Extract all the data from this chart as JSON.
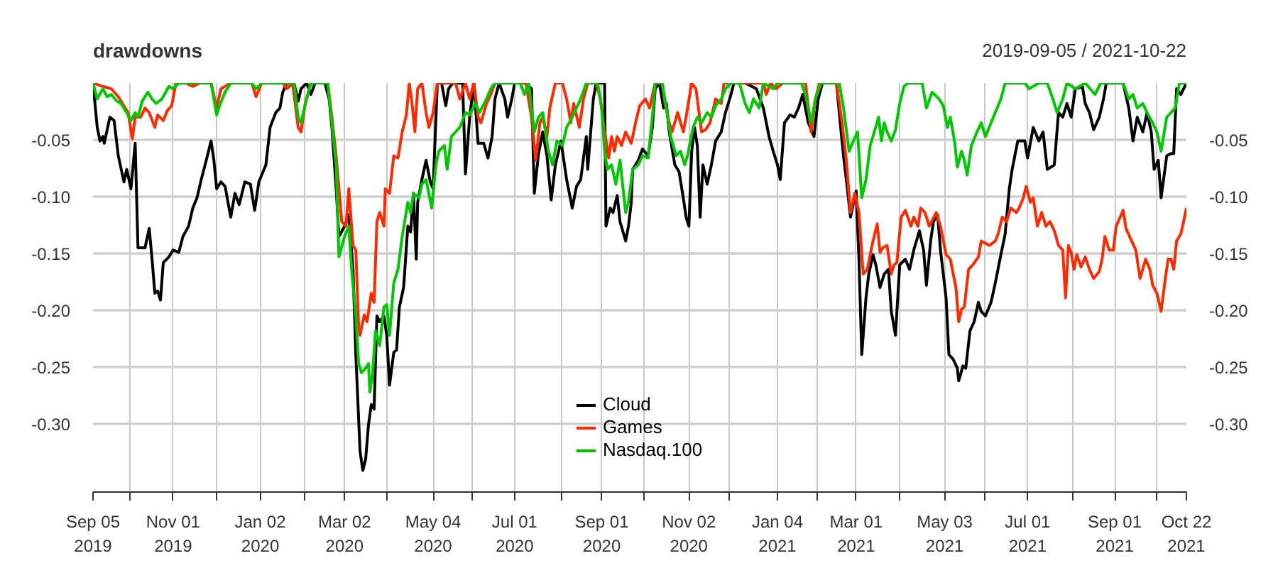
{
  "chart_data": {
    "type": "line",
    "title": "drawdowns",
    "subtitle": "2019-09-05 / 2021-10-22",
    "xlim": [
      "2019-09-05",
      "2021-10-22"
    ],
    "xticks": [
      {
        "value": "2019-09-05",
        "label": "Sep 05\n2019"
      },
      {
        "value": "2019-10-01",
        "label": null
      },
      {
        "value": "2019-11-01",
        "label": "Nov 01\n2019"
      },
      {
        "value": "2019-12-02",
        "label": null
      },
      {
        "value": "2020-01-02",
        "label": "Jan 02\n2020"
      },
      {
        "value": "2020-02-03",
        "label": null
      },
      {
        "value": "2020-03-02",
        "label": "Mar 02\n2020"
      },
      {
        "value": "2020-04-01",
        "label": null
      },
      {
        "value": "2020-05-04",
        "label": "May 04\n2020"
      },
      {
        "value": "2020-06-01",
        "label": null
      },
      {
        "value": "2020-07-01",
        "label": "Jul 01\n2020"
      },
      {
        "value": "2020-08-03",
        "label": null
      },
      {
        "value": "2020-09-01",
        "label": "Sep 01\n2020"
      },
      {
        "value": "2020-10-01",
        "label": null
      },
      {
        "value": "2020-11-02",
        "label": "Nov 02\n2020"
      },
      {
        "value": "2020-12-01",
        "label": null
      },
      {
        "value": "2021-01-04",
        "label": "Jan 04\n2021"
      },
      {
        "value": "2021-02-01",
        "label": null
      },
      {
        "value": "2021-03-01",
        "label": "Mar 01\n2021"
      },
      {
        "value": "2021-04-01",
        "label": null
      },
      {
        "value": "2021-05-03",
        "label": "May 03\n2021"
      },
      {
        "value": "2021-06-01",
        "label": null
      },
      {
        "value": "2021-07-01",
        "label": "Jul 01\n2021"
      },
      {
        "value": "2021-08-02",
        "label": null
      },
      {
        "value": "2021-09-01",
        "label": "Sep 01\n2021"
      },
      {
        "value": "2021-10-01",
        "label": null
      },
      {
        "value": "2021-10-22",
        "label": "Oct 22\n2021"
      }
    ],
    "ylim": [
      -0.36,
      0
    ],
    "yticks": [
      {
        "value": -0.3,
        "label": "-0.30"
      },
      -0.25,
      {
        "value": -0.2,
        "label": "-0.20"
      },
      -0.15,
      {
        "value": -0.1,
        "label": "-0.10"
      },
      -0.05
    ],
    "y2lim": [
      -0.36,
      0
    ],
    "y2ticks": [
      {
        "value": -0.3,
        "label": "-0.30"
      },
      -0.25,
      {
        "value": -0.2,
        "label": "-0.20"
      },
      -0.15,
      {
        "value": -0.1,
        "label": "-0.10"
      },
      -0.05
    ],
    "grid": true,
    "legend": "bottom",
    "series": [
      {
        "name": "Cloud",
        "color": "#000000",
        "x": [
          "2019-09-05",
          "2019-09-08",
          "2019-09-10",
          "2019-09-12",
          "2019-09-13",
          "2019-09-17",
          "2019-09-20",
          "2019-09-23",
          "2019-09-27",
          "2019-09-29",
          "2019-10-02",
          "2019-10-05",
          "2019-10-07",
          "2019-10-12",
          "2019-10-15",
          "2019-10-17",
          "2019-10-19",
          "2019-10-21",
          "2019-10-23",
          "2019-10-25",
          "2019-10-29",
          "2019-11-01",
          "2019-11-05",
          "2019-11-08",
          "2019-11-12",
          "2019-11-15",
          "2019-11-18",
          "2019-11-21",
          "2019-11-25",
          "2019-11-28",
          "2019-11-30",
          "2019-12-02",
          "2019-12-05",
          "2019-12-08",
          "2019-12-12",
          "2019-12-15",
          "2019-12-18",
          "2019-12-22",
          "2019-12-26",
          "2019-12-29",
          "2020-01-01",
          "2020-01-06",
          "2020-01-09",
          "2020-01-13",
          "2020-01-16",
          "2020-01-18",
          "2020-01-21",
          "2020-01-26",
          "2020-01-29",
          "2020-01-31",
          "2020-02-04",
          "2020-02-07",
          "2020-02-10",
          "2020-02-17",
          "2020-02-20",
          "2020-02-22",
          "2020-02-25",
          "2020-02-27",
          "2020-03-02",
          "2020-03-05",
          "2020-03-08",
          "2020-03-10",
          "2020-03-13",
          "2020-03-15",
          "2020-03-17",
          "2020-03-19",
          "2020-03-21",
          "2020-03-23",
          "2020-03-25",
          "2020-03-27",
          "2020-03-30",
          "2020-04-01",
          "2020-04-03",
          "2020-04-06",
          "2020-04-08",
          "2020-04-10",
          "2020-04-13",
          "2020-04-16",
          "2020-04-18",
          "2020-04-20",
          "2020-04-22",
          "2020-04-23",
          "2020-04-26",
          "2020-04-29",
          "2020-05-02",
          "2020-05-04",
          "2020-05-07",
          "2020-05-10",
          "2020-05-13",
          "2020-05-15",
          "2020-05-18",
          "2020-05-25",
          "2020-05-27",
          "2020-05-30",
          "2020-06-02",
          "2020-06-05",
          "2020-06-09",
          "2020-06-12",
          "2020-06-15",
          "2020-06-17",
          "2020-06-20",
          "2020-06-24",
          "2020-06-26",
          "2020-06-29",
          "2020-07-01",
          "2020-07-09",
          "2020-07-13",
          "2020-07-15",
          "2020-07-18",
          "2020-07-21",
          "2020-07-24",
          "2020-07-27",
          "2020-07-30",
          "2020-08-03",
          "2020-08-07",
          "2020-08-11",
          "2020-08-14",
          "2020-08-17",
          "2020-08-21",
          "2020-08-22",
          "2020-08-26",
          "2020-08-28",
          "2020-09-03",
          "2020-09-04",
          "2020-09-07",
          "2020-09-09",
          "2020-09-12",
          "2020-09-14",
          "2020-09-18",
          "2020-09-20",
          "2020-09-22",
          "2020-09-23",
          "2020-09-27",
          "2020-09-30",
          "2020-10-04",
          "2020-10-07",
          "2020-10-09",
          "2020-10-12",
          "2020-10-15",
          "2020-10-17",
          "2020-10-19",
          "2020-10-23",
          "2020-10-26",
          "2020-10-29",
          "2020-10-31",
          "2020-11-02",
          "2020-11-04",
          "2020-11-06",
          "2020-11-08",
          "2020-11-10",
          "2020-11-12",
          "2020-11-15",
          "2020-11-18",
          "2020-11-21",
          "2020-11-25",
          "2020-11-28",
          "2020-12-02",
          "2020-12-04",
          "2020-12-12",
          "2020-12-20",
          "2020-12-25",
          "2020-12-29",
          "2021-01-01",
          "2021-01-04",
          "2021-01-06",
          "2021-01-09",
          "2021-01-13",
          "2021-01-16",
          "2021-01-19",
          "2021-01-22",
          "2021-01-26",
          "2021-01-30",
          "2021-02-02",
          "2021-02-05",
          "2021-02-15",
          "2021-02-18",
          "2021-02-20",
          "2021-02-22",
          "2021-02-25",
          "2021-03-01",
          "2021-03-03",
          "2021-03-05",
          "2021-03-08",
          "2021-03-10",
          "2021-03-13",
          "2021-03-15",
          "2021-03-18",
          "2021-03-21",
          "2021-03-24",
          "2021-03-26",
          "2021-03-29",
          "2021-04-01",
          "2021-04-05",
          "2021-04-08",
          "2021-04-11",
          "2021-04-15",
          "2021-04-18",
          "2021-04-20",
          "2021-04-23",
          "2021-04-25",
          "2021-04-28",
          "2021-04-30",
          "2021-05-04",
          "2021-05-06",
          "2021-05-09",
          "2021-05-12",
          "2021-05-13",
          "2021-05-16",
          "2021-05-18",
          "2021-05-21",
          "2021-05-24",
          "2021-05-27",
          "2021-05-29",
          "2021-06-01",
          "2021-06-05",
          "2021-06-08",
          "2021-06-12",
          "2021-06-15",
          "2021-06-18",
          "2021-06-20",
          "2021-06-24",
          "2021-06-29",
          "2021-07-01",
          "2021-07-05",
          "2021-07-09",
          "2021-07-12",
          "2021-07-15",
          "2021-07-20",
          "2021-07-23",
          "2021-07-26",
          "2021-07-29",
          "2021-08-01",
          "2021-08-04",
          "2021-08-09",
          "2021-08-11",
          "2021-08-14",
          "2021-08-17",
          "2021-08-21",
          "2021-08-24",
          "2021-08-26",
          "2021-09-07",
          "2021-09-11",
          "2021-09-14",
          "2021-09-17",
          "2021-09-21",
          "2021-09-24",
          "2021-09-27",
          "2021-09-29",
          "2021-10-02",
          "2021-10-04",
          "2021-10-08",
          "2021-10-11",
          "2021-10-13",
          "2021-10-15",
          "2021-10-18",
          "2021-10-20",
          "2021-10-22"
        ],
        "values": [
          0,
          -0.039,
          -0.051,
          -0.047,
          -0.053,
          -0.03,
          -0.033,
          -0.064,
          -0.087,
          -0.076,
          -0.093,
          -0.053,
          -0.145,
          -0.145,
          -0.128,
          -0.155,
          -0.185,
          -0.183,
          -0.191,
          -0.158,
          -0.153,
          -0.147,
          -0.149,
          -0.135,
          -0.126,
          -0.11,
          -0.101,
          -0.085,
          -0.066,
          -0.051,
          -0.068,
          -0.093,
          -0.087,
          -0.091,
          -0.118,
          -0.097,
          -0.107,
          -0.087,
          -0.089,
          -0.112,
          -0.087,
          -0.072,
          -0.039,
          -0.026,
          -0.022,
          -0.008,
          0,
          0,
          -0.016,
          -0.005,
          0,
          -0.01,
          0,
          0,
          -0.014,
          -0.039,
          -0.093,
          -0.135,
          -0.126,
          -0.116,
          -0.164,
          -0.239,
          -0.324,
          -0.341,
          -0.331,
          -0.301,
          -0.283,
          -0.287,
          -0.205,
          -0.21,
          -0.205,
          -0.222,
          -0.266,
          -0.237,
          -0.235,
          -0.197,
          -0.18,
          -0.126,
          -0.131,
          -0.097,
          -0.155,
          -0.105,
          -0.085,
          -0.068,
          -0.087,
          -0.093,
          0,
          0,
          -0.02,
          -0.005,
          0,
          0,
          -0.08,
          -0.03,
          0,
          -0.053,
          -0.053,
          -0.066,
          -0.047,
          -0.014,
          0,
          -0.014,
          -0.03,
          -0.014,
          0,
          0,
          -0.005,
          -0.097,
          -0.062,
          -0.043,
          -0.064,
          -0.103,
          -0.072,
          -0.051,
          -0.085,
          -0.11,
          -0.091,
          -0.085,
          -0.047,
          -0.076,
          -0.014,
          0,
          0,
          -0.126,
          -0.11,
          -0.114,
          -0.099,
          -0.122,
          -0.139,
          -0.126,
          -0.105,
          -0.076,
          -0.068,
          -0.058,
          -0.064,
          -0.039,
          -0.005,
          0,
          -0.022,
          -0.018,
          -0.043,
          -0.072,
          -0.078,
          -0.101,
          -0.118,
          -0.126,
          -0.06,
          -0.039,
          -0.055,
          -0.118,
          -0.072,
          -0.089,
          -0.072,
          -0.051,
          -0.043,
          -0.026,
          -0.01,
          0,
          0,
          -0.005,
          -0.022,
          -0.047,
          -0.06,
          -0.072,
          -0.085,
          -0.035,
          -0.028,
          -0.03,
          -0.022,
          -0.01,
          -0.035,
          -0.047,
          -0.014,
          0,
          0,
          -0.039,
          -0.064,
          -0.085,
          -0.118,
          -0.095,
          -0.155,
          -0.239,
          -0.189,
          -0.168,
          -0.151,
          -0.16,
          -0.18,
          -0.168,
          -0.164,
          -0.201,
          -0.222,
          -0.16,
          -0.155,
          -0.164,
          -0.147,
          -0.13,
          -0.147,
          -0.178,
          -0.139,
          -0.122,
          -0.116,
          -0.147,
          -0.189,
          -0.239,
          -0.243,
          -0.251,
          -0.262,
          -0.249,
          -0.251,
          -0.218,
          -0.21,
          -0.193,
          -0.201,
          -0.205,
          -0.193,
          -0.176,
          -0.151,
          -0.133,
          -0.093,
          -0.076,
          -0.051,
          -0.051,
          -0.066,
          -0.039,
          -0.051,
          -0.043,
          -0.076,
          -0.072,
          -0.026,
          -0.03,
          -0.018,
          -0.03,
          -0.005,
          -0.003,
          -0.018,
          -0.026,
          -0.041,
          -0.03,
          -0.014,
          0,
          0,
          -0.022,
          -0.051,
          -0.03,
          -0.043,
          -0.026,
          -0.043,
          -0.076,
          -0.068,
          -0.101,
          -0.064,
          -0.062,
          -0.062,
          -0.005,
          -0.01,
          -0.005,
          0
        ]
      },
      {
        "name": "Games",
        "color": "#ff2b00",
        "x": [
          "2019-09-05",
          "2019-09-12",
          "2019-09-18",
          "2019-09-23",
          "2019-09-27",
          "2019-09-30",
          "2019-10-03",
          "2019-10-05",
          "2019-10-09",
          "2019-10-12",
          "2019-10-15",
          "2019-10-19",
          "2019-10-21",
          "2019-10-25",
          "2019-10-28",
          "2019-10-31",
          "2019-11-03",
          "2019-11-10",
          "2019-11-15",
          "2019-11-20",
          "2019-11-28",
          "2019-12-02",
          "2019-12-05",
          "2019-12-12",
          "2019-12-27",
          "2019-12-30",
          "2020-01-03",
          "2020-01-18",
          "2020-01-21",
          "2020-01-25",
          "2020-01-29",
          "2020-01-31",
          "2020-02-03",
          "2020-02-07",
          "2020-02-19",
          "2020-02-22",
          "2020-02-25",
          "2020-02-29",
          "2020-03-03",
          "2020-03-05",
          "2020-03-08",
          "2020-03-10",
          "2020-03-12",
          "2020-03-13",
          "2020-03-16",
          "2020-03-18",
          "2020-03-21",
          "2020-03-23",
          "2020-03-25",
          "2020-03-27",
          "2020-03-30",
          "2020-03-31",
          "2020-04-03",
          "2020-04-06",
          "2020-04-09",
          "2020-04-12",
          "2020-04-15",
          "2020-04-17",
          "2020-04-19",
          "2020-04-21",
          "2020-04-23",
          "2020-04-26",
          "2020-04-29",
          "2020-05-01",
          "2020-05-04",
          "2020-05-07",
          "2020-05-20",
          "2020-05-23",
          "2020-05-27",
          "2020-05-30",
          "2020-06-02",
          "2020-06-05",
          "2020-06-07",
          "2020-06-11",
          "2020-06-14",
          "2020-06-17",
          "2020-07-09",
          "2020-07-13",
          "2020-07-16",
          "2020-07-19",
          "2020-07-21",
          "2020-07-24",
          "2020-07-26",
          "2020-07-30",
          "2020-08-04",
          "2020-08-07",
          "2020-08-10",
          "2020-08-12",
          "2020-08-16",
          "2020-08-19",
          "2020-08-22",
          "2020-08-28",
          "2020-08-31",
          "2020-09-03",
          "2020-09-06",
          "2020-09-08",
          "2020-09-10",
          "2020-09-12",
          "2020-09-15",
          "2020-09-18",
          "2020-09-22",
          "2020-09-25",
          "2020-09-28",
          "2020-10-02",
          "2020-10-05",
          "2020-10-09",
          "2020-10-14",
          "2020-10-16",
          "2020-10-19",
          "2020-10-21",
          "2020-10-25",
          "2020-10-29",
          "2020-10-31",
          "2020-11-04",
          "2020-11-07",
          "2020-11-11",
          "2020-11-14",
          "2020-11-17",
          "2020-11-21",
          "2020-11-25",
          "2020-11-27",
          "2020-12-25",
          "2020-12-27",
          "2020-12-30",
          "2021-01-03",
          "2021-01-08",
          "2021-01-24",
          "2021-01-28",
          "2021-01-31",
          "2021-02-03",
          "2021-02-15",
          "2021-02-19",
          "2021-02-22",
          "2021-02-25",
          "2021-02-28",
          "2021-03-03",
          "2021-03-06",
          "2021-03-09",
          "2021-03-11",
          "2021-03-13",
          "2021-03-16",
          "2021-03-18",
          "2021-03-20",
          "2021-03-23",
          "2021-03-26",
          "2021-03-28",
          "2021-03-30",
          "2021-04-02",
          "2021-04-05",
          "2021-04-09",
          "2021-04-11",
          "2021-04-14",
          "2021-04-16",
          "2021-04-19",
          "2021-04-22",
          "2021-04-27",
          "2021-04-30",
          "2021-05-04",
          "2021-05-07",
          "2021-05-11",
          "2021-05-13",
          "2021-05-15",
          "2021-05-17",
          "2021-05-20",
          "2021-05-23",
          "2021-05-27",
          "2021-05-29",
          "2021-06-01",
          "2021-06-04",
          "2021-06-08",
          "2021-06-10",
          "2021-06-13",
          "2021-06-16",
          "2021-06-19",
          "2021-06-23",
          "2021-06-25",
          "2021-06-28",
          "2021-06-30",
          "2021-07-03",
          "2021-07-05",
          "2021-07-08",
          "2021-07-11",
          "2021-07-14",
          "2021-07-17",
          "2021-07-20",
          "2021-07-23",
          "2021-07-26",
          "2021-07-28",
          "2021-07-30",
          "2021-08-01",
          "2021-08-03",
          "2021-08-05",
          "2021-08-08",
          "2021-08-11",
          "2021-08-14",
          "2021-08-17",
          "2021-08-21",
          "2021-08-23",
          "2021-08-25",
          "2021-08-28",
          "2021-08-31",
          "2021-09-02",
          "2021-09-07",
          "2021-09-09",
          "2021-09-13",
          "2021-09-16",
          "2021-09-19",
          "2021-09-23",
          "2021-09-26",
          "2021-09-28",
          "2021-10-01",
          "2021-10-04",
          "2021-10-07",
          "2021-10-09",
          "2021-10-11",
          "2021-10-13",
          "2021-10-15",
          "2021-10-18",
          "2021-10-20",
          "2021-10-22"
        ],
        "values": [
          0,
          -0.003,
          -0.005,
          -0.012,
          -0.02,
          -0.026,
          -0.049,
          -0.03,
          -0.03,
          -0.022,
          -0.026,
          -0.039,
          -0.028,
          -0.033,
          -0.024,
          -0.02,
          0,
          0,
          -0.003,
          0,
          0,
          -0.022,
          -0.005,
          0,
          0,
          -0.012,
          0,
          0,
          -0.005,
          0,
          -0.039,
          -0.043,
          -0.018,
          0,
          0,
          -0.03,
          -0.064,
          -0.122,
          -0.126,
          -0.093,
          -0.143,
          -0.147,
          -0.214,
          -0.222,
          -0.204,
          -0.21,
          -0.185,
          -0.193,
          -0.122,
          -0.114,
          -0.126,
          -0.093,
          -0.097,
          -0.064,
          -0.066,
          -0.043,
          -0.028,
          0,
          -0.018,
          -0.043,
          -0.005,
          0,
          -0.026,
          -0.039,
          -0.026,
          0,
          0,
          -0.014,
          0,
          -0.014,
          0,
          -0.03,
          -0.035,
          -0.018,
          -0.01,
          0,
          0,
          -0.03,
          -0.068,
          -0.035,
          -0.03,
          -0.047,
          -0.022,
          0,
          0,
          -0.014,
          -0.035,
          -0.018,
          -0.039,
          -0.014,
          0,
          0,
          -0.014,
          -0.043,
          -0.066,
          -0.047,
          -0.06,
          -0.047,
          -0.055,
          -0.043,
          -0.053,
          -0.035,
          -0.02,
          -0.014,
          -0.022,
          0,
          0,
          -0.018,
          -0.035,
          -0.043,
          -0.026,
          -0.043,
          -0.03,
          0,
          -0.005,
          -0.043,
          -0.041,
          -0.035,
          -0.014,
          -0.018,
          0,
          0,
          -0.01,
          0,
          -0.005,
          0,
          0,
          -0.043,
          -0.014,
          0,
          0,
          -0.035,
          -0.068,
          -0.114,
          -0.097,
          -0.114,
          -0.168,
          -0.164,
          -0.151,
          -0.139,
          -0.124,
          -0.149,
          -0.145,
          -0.143,
          -0.168,
          -0.16,
          -0.158,
          -0.118,
          -0.112,
          -0.126,
          -0.118,
          -0.126,
          -0.11,
          -0.114,
          -0.126,
          -0.114,
          -0.126,
          -0.151,
          -0.155,
          -0.18,
          -0.21,
          -0.199,
          -0.197,
          -0.164,
          -0.16,
          -0.153,
          -0.139,
          -0.141,
          -0.143,
          -0.139,
          -0.133,
          -0.118,
          -0.122,
          -0.11,
          -0.114,
          -0.11,
          -0.101,
          -0.091,
          -0.105,
          -0.101,
          -0.126,
          -0.114,
          -0.126,
          -0.122,
          -0.13,
          -0.143,
          -0.147,
          -0.189,
          -0.143,
          -0.149,
          -0.164,
          -0.151,
          -0.162,
          -0.153,
          -0.164,
          -0.172,
          -0.166,
          -0.155,
          -0.135,
          -0.147,
          -0.147,
          -0.126,
          -0.112,
          -0.128,
          -0.139,
          -0.147,
          -0.172,
          -0.155,
          -0.164,
          -0.178,
          -0.185,
          -0.201,
          -0.172,
          -0.155,
          -0.155,
          -0.164,
          -0.139,
          -0.133,
          -0.122,
          -0.11
        ]
      },
      {
        "name": "Nasdaq.100",
        "color": "#00c800",
        "x": [
          "2019-09-05",
          "2019-09-08",
          "2019-09-12",
          "2019-09-15",
          "2019-09-18",
          "2019-09-22",
          "2019-09-25",
          "2019-09-29",
          "2019-10-02",
          "2019-10-05",
          "2019-10-07",
          "2019-10-10",
          "2019-10-14",
          "2019-10-17",
          "2019-10-20",
          "2019-10-24",
          "2019-10-29",
          "2019-11-01",
          "2019-11-05",
          "2019-11-28",
          "2019-12-02",
          "2019-12-04",
          "2019-12-08",
          "2019-12-12",
          "2019-12-27",
          "2019-12-30",
          "2020-01-03",
          "2020-01-26",
          "2020-01-29",
          "2020-01-31",
          "2020-02-04",
          "2020-02-07",
          "2020-02-19",
          "2020-02-22",
          "2020-02-25",
          "2020-02-27",
          "2020-03-02",
          "2020-03-05",
          "2020-03-07",
          "2020-03-10",
          "2020-03-12",
          "2020-03-14",
          "2020-03-17",
          "2020-03-19",
          "2020-03-20",
          "2020-03-22",
          "2020-03-24",
          "2020-03-27",
          "2020-03-30",
          "2020-04-01",
          "2020-04-03",
          "2020-04-06",
          "2020-04-09",
          "2020-04-12",
          "2020-04-16",
          "2020-04-18",
          "2020-04-20",
          "2020-04-24",
          "2020-04-26",
          "2020-04-29",
          "2020-05-03",
          "2020-05-06",
          "2020-05-08",
          "2020-05-12",
          "2020-05-14",
          "2020-05-17",
          "2020-05-20",
          "2020-05-23",
          "2020-05-27",
          "2020-05-30",
          "2020-06-03",
          "2020-06-06",
          "2020-06-11",
          "2020-06-14",
          "2020-06-17",
          "2020-07-05",
          "2020-07-08",
          "2020-07-11",
          "2020-07-15",
          "2020-07-18",
          "2020-07-21",
          "2020-07-25",
          "2020-07-28",
          "2020-07-31",
          "2020-08-04",
          "2020-08-07",
          "2020-08-11",
          "2020-08-14",
          "2020-08-17",
          "2020-08-21",
          "2020-08-29",
          "2020-09-01",
          "2020-09-03",
          "2020-09-05",
          "2020-09-08",
          "2020-09-11",
          "2020-09-14",
          "2020-09-18",
          "2020-09-20",
          "2020-09-23",
          "2020-09-27",
          "2020-09-30",
          "2020-10-04",
          "2020-10-07",
          "2020-10-09",
          "2020-10-14",
          "2020-10-17",
          "2020-10-20",
          "2020-10-24",
          "2020-10-27",
          "2020-10-30",
          "2020-11-01",
          "2020-11-05",
          "2020-11-08",
          "2020-11-11",
          "2020-11-15",
          "2020-11-18",
          "2020-11-21",
          "2020-11-25",
          "2020-11-28",
          "2020-12-02",
          "2020-12-08",
          "2020-12-12",
          "2020-12-15",
          "2020-12-18",
          "2020-12-22",
          "2020-12-25",
          "2021-01-01",
          "2021-01-04",
          "2021-01-21",
          "2021-01-24",
          "2021-01-28",
          "2021-01-31",
          "2021-02-04",
          "2021-02-17",
          "2021-02-20",
          "2021-02-24",
          "2021-02-27",
          "2021-03-02",
          "2021-03-05",
          "2021-03-08",
          "2021-03-11",
          "2021-03-13",
          "2021-03-17",
          "2021-03-19",
          "2021-03-21",
          "2021-03-23",
          "2021-03-26",
          "2021-03-29",
          "2021-04-01",
          "2021-04-04",
          "2021-04-07",
          "2021-04-17",
          "2021-04-20",
          "2021-04-24",
          "2021-04-29",
          "2021-05-02",
          "2021-05-05",
          "2021-05-07",
          "2021-05-10",
          "2021-05-12",
          "2021-05-15",
          "2021-05-17",
          "2021-05-19",
          "2021-05-22",
          "2021-05-26",
          "2021-05-29",
          "2021-06-01",
          "2021-06-05",
          "2021-06-08",
          "2021-06-12",
          "2021-06-15",
          "2021-06-29",
          "2021-07-02",
          "2021-07-09",
          "2021-07-15",
          "2021-07-19",
          "2021-07-22",
          "2021-07-26",
          "2021-07-29",
          "2021-08-04",
          "2021-08-11",
          "2021-08-18",
          "2021-08-22",
          "2021-09-07",
          "2021-09-11",
          "2021-09-14",
          "2021-09-17",
          "2021-09-21",
          "2021-09-24",
          "2021-09-28",
          "2021-10-01",
          "2021-10-04",
          "2021-10-08",
          "2021-10-11",
          "2021-10-14",
          "2021-10-17",
          "2021-10-22"
        ],
        "values": [
          0,
          -0.014,
          -0.005,
          -0.012,
          -0.01,
          -0.016,
          -0.018,
          -0.026,
          -0.033,
          -0.026,
          -0.03,
          -0.016,
          -0.008,
          -0.014,
          -0.018,
          -0.014,
          -0.003,
          -0.005,
          0,
          0,
          -0.028,
          -0.02,
          -0.008,
          0,
          0,
          -0.005,
          0,
          0,
          -0.03,
          -0.035,
          -0.014,
          0,
          0,
          -0.035,
          -0.072,
          -0.153,
          -0.135,
          -0.126,
          -0.164,
          -0.205,
          -0.247,
          -0.255,
          -0.251,
          -0.247,
          -0.272,
          -0.255,
          -0.218,
          -0.231,
          -0.197,
          -0.195,
          -0.222,
          -0.176,
          -0.164,
          -0.135,
          -0.105,
          -0.114,
          -0.097,
          -0.101,
          -0.089,
          -0.085,
          -0.11,
          -0.072,
          -0.06,
          -0.055,
          -0.076,
          -0.047,
          -0.043,
          -0.039,
          -0.026,
          -0.028,
          -0.018,
          -0.026,
          -0.014,
          -0.005,
          0,
          0,
          -0.01,
          0,
          -0.043,
          -0.03,
          -0.026,
          -0.06,
          -0.072,
          -0.051,
          -0.055,
          -0.039,
          -0.03,
          -0.022,
          -0.014,
          0,
          0,
          -0.022,
          -0.06,
          -0.076,
          -0.072,
          -0.089,
          -0.068,
          -0.114,
          -0.105,
          -0.076,
          -0.072,
          -0.064,
          -0.066,
          -0.03,
          0,
          0,
          -0.022,
          -0.047,
          -0.064,
          -0.06,
          -0.072,
          -0.064,
          -0.039,
          -0.03,
          -0.035,
          -0.026,
          -0.03,
          -0.02,
          -0.014,
          -0.005,
          0,
          0,
          -0.018,
          -0.026,
          -0.014,
          -0.022,
          0,
          -0.005,
          0,
          0,
          -0.01,
          -0.035,
          -0.014,
          0,
          0,
          -0.022,
          -0.06,
          -0.051,
          -0.043,
          -0.101,
          -0.085,
          -0.055,
          -0.047,
          -0.03,
          -0.051,
          -0.035,
          -0.043,
          -0.051,
          -0.041,
          -0.018,
          -0.003,
          0,
          0,
          -0.022,
          -0.008,
          -0.014,
          -0.02,
          -0.039,
          -0.03,
          -0.051,
          -0.074,
          -0.06,
          -0.068,
          -0.081,
          -0.055,
          -0.043,
          -0.035,
          -0.047,
          -0.035,
          -0.026,
          -0.014,
          0,
          0,
          -0.005,
          0,
          0,
          -0.014,
          -0.026,
          -0.014,
          0,
          -0.005,
          0,
          -0.01,
          0,
          0,
          -0.014,
          -0.01,
          -0.022,
          -0.018,
          -0.026,
          -0.035,
          -0.043,
          -0.06,
          -0.03,
          -0.026,
          -0.022,
          0,
          0
        ]
      }
    ]
  }
}
